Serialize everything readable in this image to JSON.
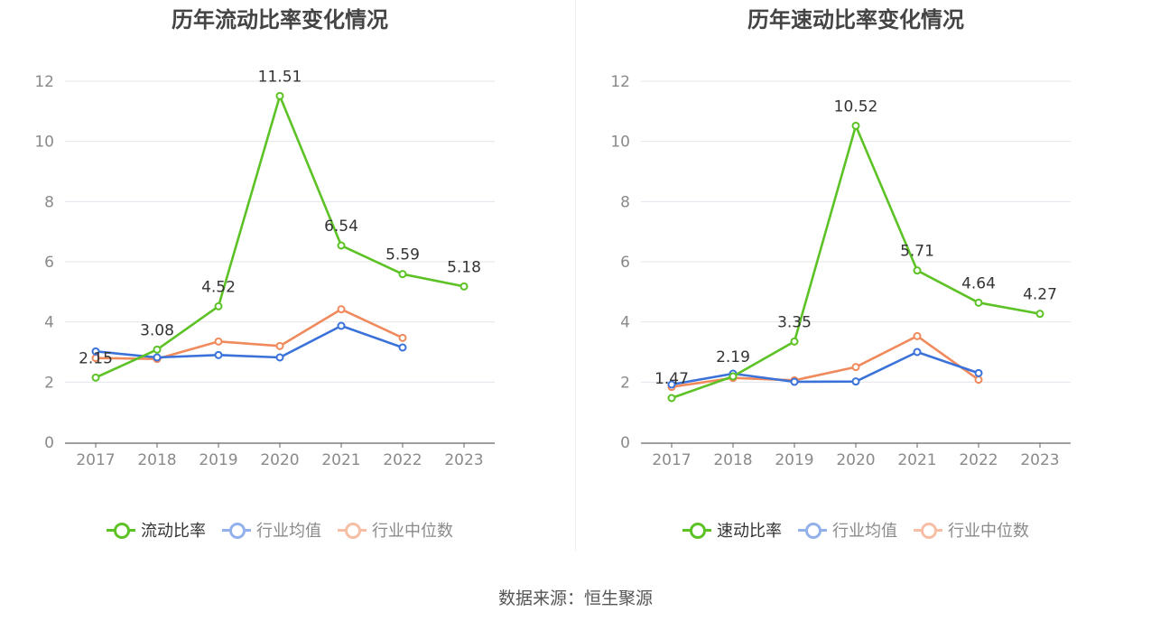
{
  "chart_data": [
    {
      "type": "line",
      "title": "历年流动比率变化情况",
      "categories": [
        "2017",
        "2018",
        "2019",
        "2020",
        "2021",
        "2022",
        "2023"
      ],
      "ylim": [
        0,
        12
      ],
      "yticks": [
        0,
        2,
        4,
        6,
        8,
        10,
        12
      ],
      "series": [
        {
          "name": "流动比率",
          "color": "#5cc225",
          "values": [
            2.15,
            3.08,
            4.52,
            11.51,
            6.54,
            5.59,
            5.18
          ],
          "labels": [
            "2.15",
            "3.08",
            "4.52",
            "11.51",
            "6.54",
            "5.59",
            "5.18"
          ]
        },
        {
          "name": "行业均值",
          "color": "#3a72d9",
          "values": [
            3.02,
            2.82,
            2.9,
            2.82,
            3.87,
            3.15,
            null
          ]
        },
        {
          "name": "行业中位数",
          "color": "#f08a5d",
          "values": [
            2.8,
            2.77,
            3.35,
            3.2,
            4.42,
            3.47,
            null
          ]
        }
      ]
    },
    {
      "type": "line",
      "title": "历年速动比率变化情况",
      "categories": [
        "2017",
        "2018",
        "2019",
        "2020",
        "2021",
        "2022",
        "2023"
      ],
      "ylim": [
        0,
        12
      ],
      "yticks": [
        0,
        2,
        4,
        6,
        8,
        10,
        12
      ],
      "series": [
        {
          "name": "速动比率",
          "color": "#5cc225",
          "values": [
            1.47,
            2.19,
            3.35,
            10.52,
            5.71,
            4.64,
            4.27
          ],
          "labels": [
            "1.47",
            "2.19",
            "3.35",
            "10.52",
            "5.71",
            "4.64",
            "4.27"
          ]
        },
        {
          "name": "行业均值",
          "color": "#3a72d9",
          "values": [
            1.92,
            2.28,
            2.01,
            2.02,
            3.0,
            2.3,
            null
          ]
        },
        {
          "name": "行业中位数",
          "color": "#f08a5d",
          "values": [
            1.84,
            2.14,
            2.06,
            2.5,
            3.53,
            2.08,
            null
          ]
        }
      ]
    }
  ],
  "legend": {
    "left": [
      "流动比率",
      "行业均值",
      "行业中位数"
    ],
    "right": [
      "速动比率",
      "行业均值",
      "行业中位数"
    ],
    "colors": [
      "#5cc225",
      "#3a72d9",
      "#f08a5d"
    ],
    "label_colors": [
      "#333333",
      "#8a8a8a",
      "#8a8a8a"
    ],
    "swatch_opacity": [
      1,
      0.55,
      0.55
    ]
  },
  "source": "数据来源：恒生聚源"
}
